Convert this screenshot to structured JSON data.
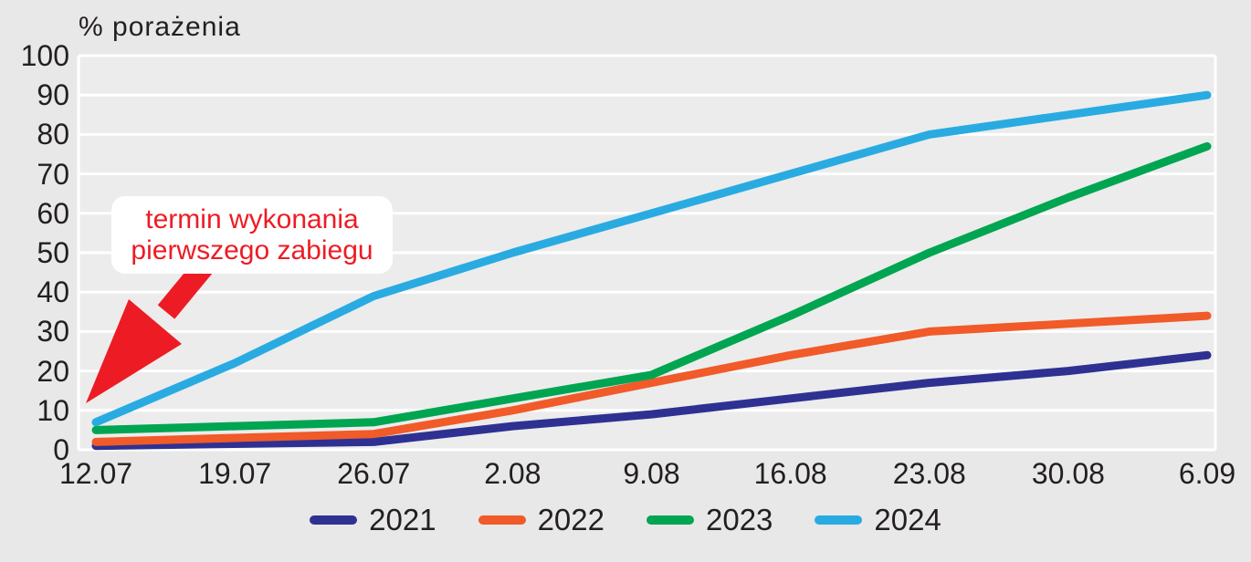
{
  "title": "% porażenia",
  "annotation": {
    "line1": "termin wykonania",
    "line2": "pierwszego zabiegu"
  },
  "colors": {
    "page_background": "#e8e8e8",
    "plot_background": "#ececec",
    "gridline": "#ffffff",
    "text": "#231f20",
    "annotation_red": "#ed1c24",
    "annotation_box": "#ffffff"
  },
  "chart_data": {
    "type": "line",
    "title": "% porażenia",
    "ylabel": "% porażenia",
    "xlabel": "",
    "categories": [
      "12.07",
      "19.07",
      "26.07",
      "2.08",
      "9.08",
      "16.08",
      "23.08",
      "30.08",
      "6.09"
    ],
    "series": [
      {
        "name": "2021",
        "color": "#2e3192",
        "values": [
          1,
          1.5,
          2,
          6,
          9,
          13,
          17,
          20,
          24
        ]
      },
      {
        "name": "2022",
        "color": "#f15a29",
        "values": [
          2,
          3,
          4,
          10,
          17,
          24,
          30,
          32,
          34
        ]
      },
      {
        "name": "2023",
        "color": "#00a551",
        "values": [
          5,
          6,
          7,
          13,
          19,
          34,
          50,
          64,
          77
        ]
      },
      {
        "name": "2024",
        "color": "#29abe2",
        "values": [
          7,
          22,
          39,
          50,
          60,
          70,
          80,
          85,
          90
        ]
      }
    ],
    "ylim": [
      0,
      100
    ],
    "ytick_step": 10,
    "grid": true,
    "legend_position": "bottom",
    "annotation_text": "termin wykonania pierwszego zabiegu",
    "annotation_points_to": "first value of 2024 series at 12.07"
  }
}
